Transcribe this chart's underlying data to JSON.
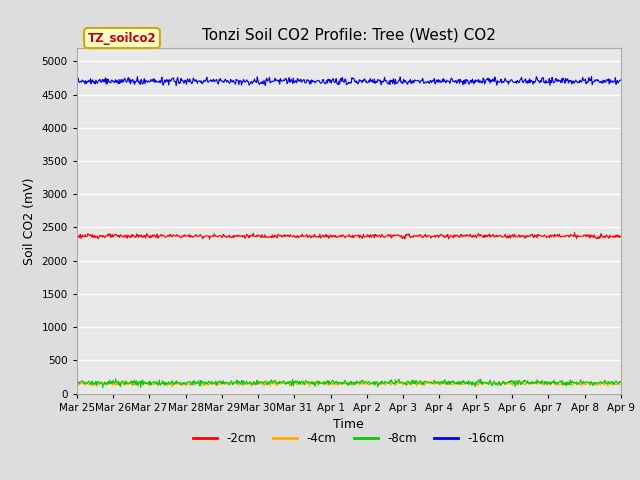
{
  "title": "Tonzi Soil CO2 Profile: Tree (West) CO2",
  "xlabel": "Time",
  "ylabel": "Soil CO2 (mV)",
  "ylim": [
    0,
    5200
  ],
  "yticks": [
    0,
    500,
    1000,
    1500,
    2000,
    2500,
    3000,
    3500,
    4000,
    4500,
    5000
  ],
  "legend_label": "TZ_soilco2",
  "series": [
    {
      "label": "-2cm",
      "color": "#ff0000",
      "mean": 2370,
      "noise": 15
    },
    {
      "label": "-4cm",
      "color": "#ffaa00",
      "mean": 150,
      "noise": 15
    },
    {
      "label": "-8cm",
      "color": "#00cc00",
      "mean": 165,
      "noise": 20
    },
    {
      "label": "-16cm",
      "color": "#0000ee",
      "mean": 4700,
      "noise": 25
    }
  ],
  "n_points": 800,
  "tick_labels": [
    "Mar 25",
    "Mar 26",
    "Mar 27",
    "Mar 28",
    "Mar 29",
    "Mar 30",
    "Mar 31",
    "Apr 1",
    "Apr 2",
    "Apr 3",
    "Apr 4",
    "Apr 5",
    "Apr 6",
    "Apr 7",
    "Apr 8",
    "Apr 9"
  ],
  "background_color": "#dddddd",
  "plot_bg_color": "#e8e8e8",
  "grid_color": "#ffffff",
  "title_fontsize": 11,
  "axis_label_fontsize": 9,
  "tick_fontsize": 7.5,
  "legend_box_color": "#ffffcc",
  "legend_box_edge": "#ccaa00",
  "legend_text_color": "#cc0000"
}
